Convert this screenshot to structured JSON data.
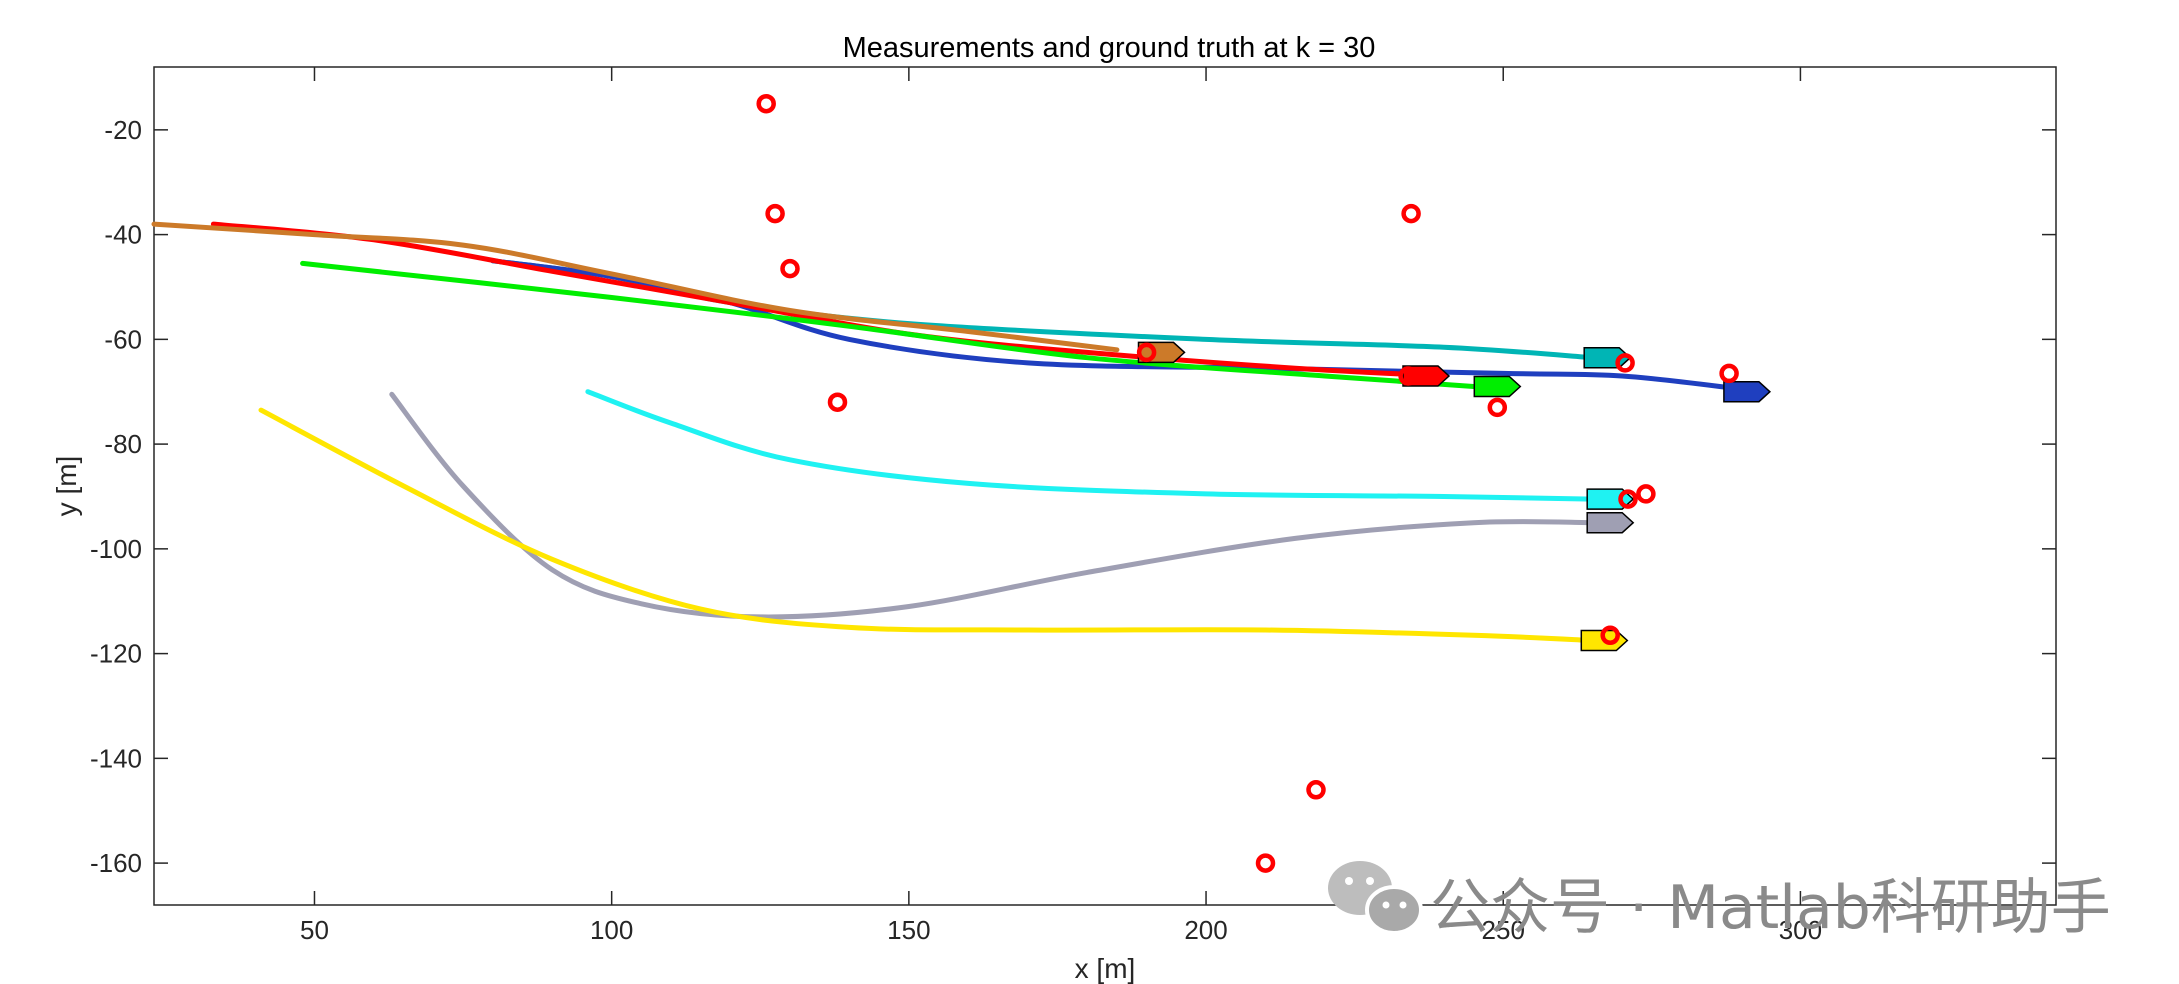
{
  "chart_data": {
    "type": "line",
    "title": "Measurements and ground truth at k = 30",
    "xlabel": "x [m]",
    "ylabel": "y [m]",
    "xlim": [
      23,
      343
    ],
    "ylim": [
      -168,
      -8
    ],
    "xticks": [
      50,
      100,
      150,
      200,
      250,
      300
    ],
    "yticks": [
      -20,
      -40,
      -60,
      -80,
      -100,
      -120,
      -140,
      -160
    ],
    "xtick_labels": [
      "50",
      "100",
      "150",
      "200",
      "250",
      "300"
    ],
    "ytick_labels": [
      "-20",
      "-40",
      "-60",
      "-80",
      "-100",
      "-120",
      "-140",
      "-160"
    ],
    "grid": false,
    "series": [
      {
        "color": "#00b5b5",
        "points": [
          [
            80,
            -45
          ],
          [
            100,
            -48
          ],
          [
            120,
            -53
          ],
          [
            150,
            -57
          ],
          [
            200,
            -60
          ],
          [
            240,
            -61.5
          ],
          [
            265,
            -63.5
          ]
        ]
      },
      {
        "color": "#1f3fbf",
        "points": [
          [
            80,
            -45
          ],
          [
            100,
            -48
          ],
          [
            120,
            -53
          ],
          [
            140,
            -60
          ],
          [
            170,
            -64.5
          ],
          [
            210,
            -65.5
          ],
          [
            250,
            -66.5
          ],
          [
            270,
            -67
          ],
          [
            290,
            -69.5
          ]
        ]
      },
      {
        "color": "#ff0000",
        "points": [
          [
            33,
            -38
          ],
          [
            60,
            -41
          ],
          [
            90,
            -47
          ],
          [
            120,
            -53
          ],
          [
            150,
            -59
          ],
          [
            180,
            -62.5
          ],
          [
            215,
            -65.5
          ],
          [
            240,
            -67
          ]
        ]
      },
      {
        "color": "#cc7a29",
        "points": [
          [
            23,
            -38
          ],
          [
            50,
            -40
          ],
          [
            75,
            -42
          ],
          [
            100,
            -47.5
          ],
          [
            130,
            -54.5
          ],
          [
            160,
            -58.5
          ],
          [
            185,
            -62
          ]
        ]
      },
      {
        "color": "#00ee00",
        "points": [
          [
            48,
            -45.5
          ],
          [
            100,
            -52
          ],
          [
            140,
            -57.5
          ],
          [
            180,
            -63.5
          ],
          [
            220,
            -67
          ],
          [
            245,
            -69
          ]
        ]
      },
      {
        "color": "#1ff2f2",
        "points": [
          [
            96,
            -70
          ],
          [
            110,
            -76
          ],
          [
            130,
            -83
          ],
          [
            160,
            -87.5
          ],
          [
            200,
            -89.5
          ],
          [
            240,
            -90
          ],
          [
            265,
            -90.5
          ]
        ]
      },
      {
        "color": "#9f9fb3",
        "points": [
          [
            63,
            -70.5
          ],
          [
            75,
            -88
          ],
          [
            90,
            -104
          ],
          [
            105,
            -110.5
          ],
          [
            125,
            -113
          ],
          [
            150,
            -111
          ],
          [
            180,
            -104.5
          ],
          [
            215,
            -98
          ],
          [
            245,
            -95
          ],
          [
            265,
            -95
          ]
        ]
      },
      {
        "color": "#ffe600",
        "points": [
          [
            41,
            -73.5
          ],
          [
            65,
            -88
          ],
          [
            90,
            -102
          ],
          [
            115,
            -111.5
          ],
          [
            140,
            -115
          ],
          [
            170,
            -115.5
          ],
          [
            210,
            -115.5
          ],
          [
            245,
            -116.5
          ],
          [
            265,
            -117.5
          ]
        ]
      }
    ],
    "vessels": [
      {
        "x": 192.5,
        "y": -62.5,
        "fill": "#cc7a29"
      },
      {
        "x": 267.5,
        "y": -63.5,
        "fill": "#00b5b5"
      },
      {
        "x": 237,
        "y": -67,
        "fill": "#ff0000"
      },
      {
        "x": 249,
        "y": -69,
        "fill": "#00ee00"
      },
      {
        "x": 291,
        "y": -70,
        "fill": "#1f3fbf"
      },
      {
        "x": 268,
        "y": -90.5,
        "fill": "#1ff2f2"
      },
      {
        "x": 268,
        "y": -95,
        "fill": "#9f9fb3"
      },
      {
        "x": 267,
        "y": -117.5,
        "fill": "#ffe600"
      }
    ],
    "measurements": {
      "color": "#ff0000",
      "points": [
        [
          126,
          -15
        ],
        [
          127.5,
          -36
        ],
        [
          130,
          -46.5
        ],
        [
          138,
          -72
        ],
        [
          190,
          -62.5
        ],
        [
          234.5,
          -36
        ],
        [
          234,
          -67
        ],
        [
          249,
          -73
        ],
        [
          270.5,
          -64.5
        ],
        [
          288,
          -66.5
        ],
        [
          271,
          -90.5
        ],
        [
          274,
          -89.5
        ],
        [
          268,
          -116.5
        ],
        [
          218.5,
          -146
        ],
        [
          210,
          -160
        ]
      ]
    }
  },
  "watermark": {
    "text": "公众号 · Matlab科研助手"
  }
}
